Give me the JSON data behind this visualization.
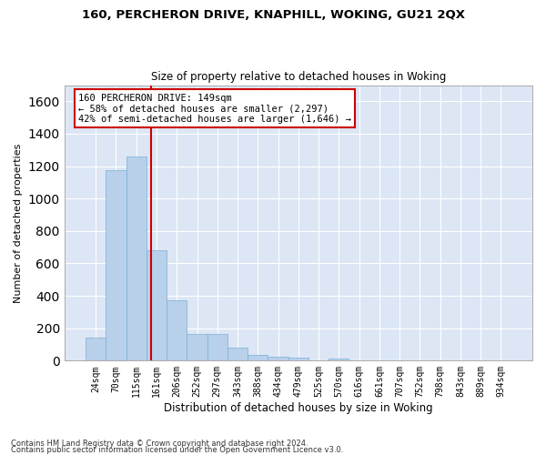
{
  "title_line1": "160, PERCHERON DRIVE, KNAPHILL, WOKING, GU21 2QX",
  "title_line2": "Size of property relative to detached houses in Woking",
  "xlabel": "Distribution of detached houses by size in Woking",
  "ylabel": "Number of detached properties",
  "bar_color": "#b8d0ea",
  "bar_edge_color": "#7aafd4",
  "background_color": "#dce6f5",
  "grid_color": "#ffffff",
  "categories": [
    "24sqm",
    "70sqm",
    "115sqm",
    "161sqm",
    "206sqm",
    "252sqm",
    "297sqm",
    "343sqm",
    "388sqm",
    "434sqm",
    "479sqm",
    "525sqm",
    "570sqm",
    "616sqm",
    "661sqm",
    "707sqm",
    "752sqm",
    "798sqm",
    "843sqm",
    "889sqm",
    "934sqm"
  ],
  "values": [
    145,
    1175,
    1260,
    680,
    375,
    165,
    165,
    80,
    35,
    25,
    20,
    0,
    15,
    0,
    0,
    0,
    0,
    0,
    0,
    0,
    0
  ],
  "ylim": [
    0,
    1700
  ],
  "yticks": [
    0,
    200,
    400,
    600,
    800,
    1000,
    1200,
    1400,
    1600
  ],
  "vline_x": 2.72,
  "annotation_line1": "160 PERCHERON DRIVE: 149sqm",
  "annotation_line2": "← 58% of detached houses are smaller (2,297)",
  "annotation_line3": "42% of semi-detached houses are larger (1,646) →",
  "annotation_box_color": "#ffffff",
  "annotation_box_edge": "#cc0000",
  "vline_color": "#cc0000",
  "footer_line1": "Contains HM Land Registry data © Crown copyright and database right 2024.",
  "footer_line2": "Contains public sector information licensed under the Open Government Licence v3.0."
}
